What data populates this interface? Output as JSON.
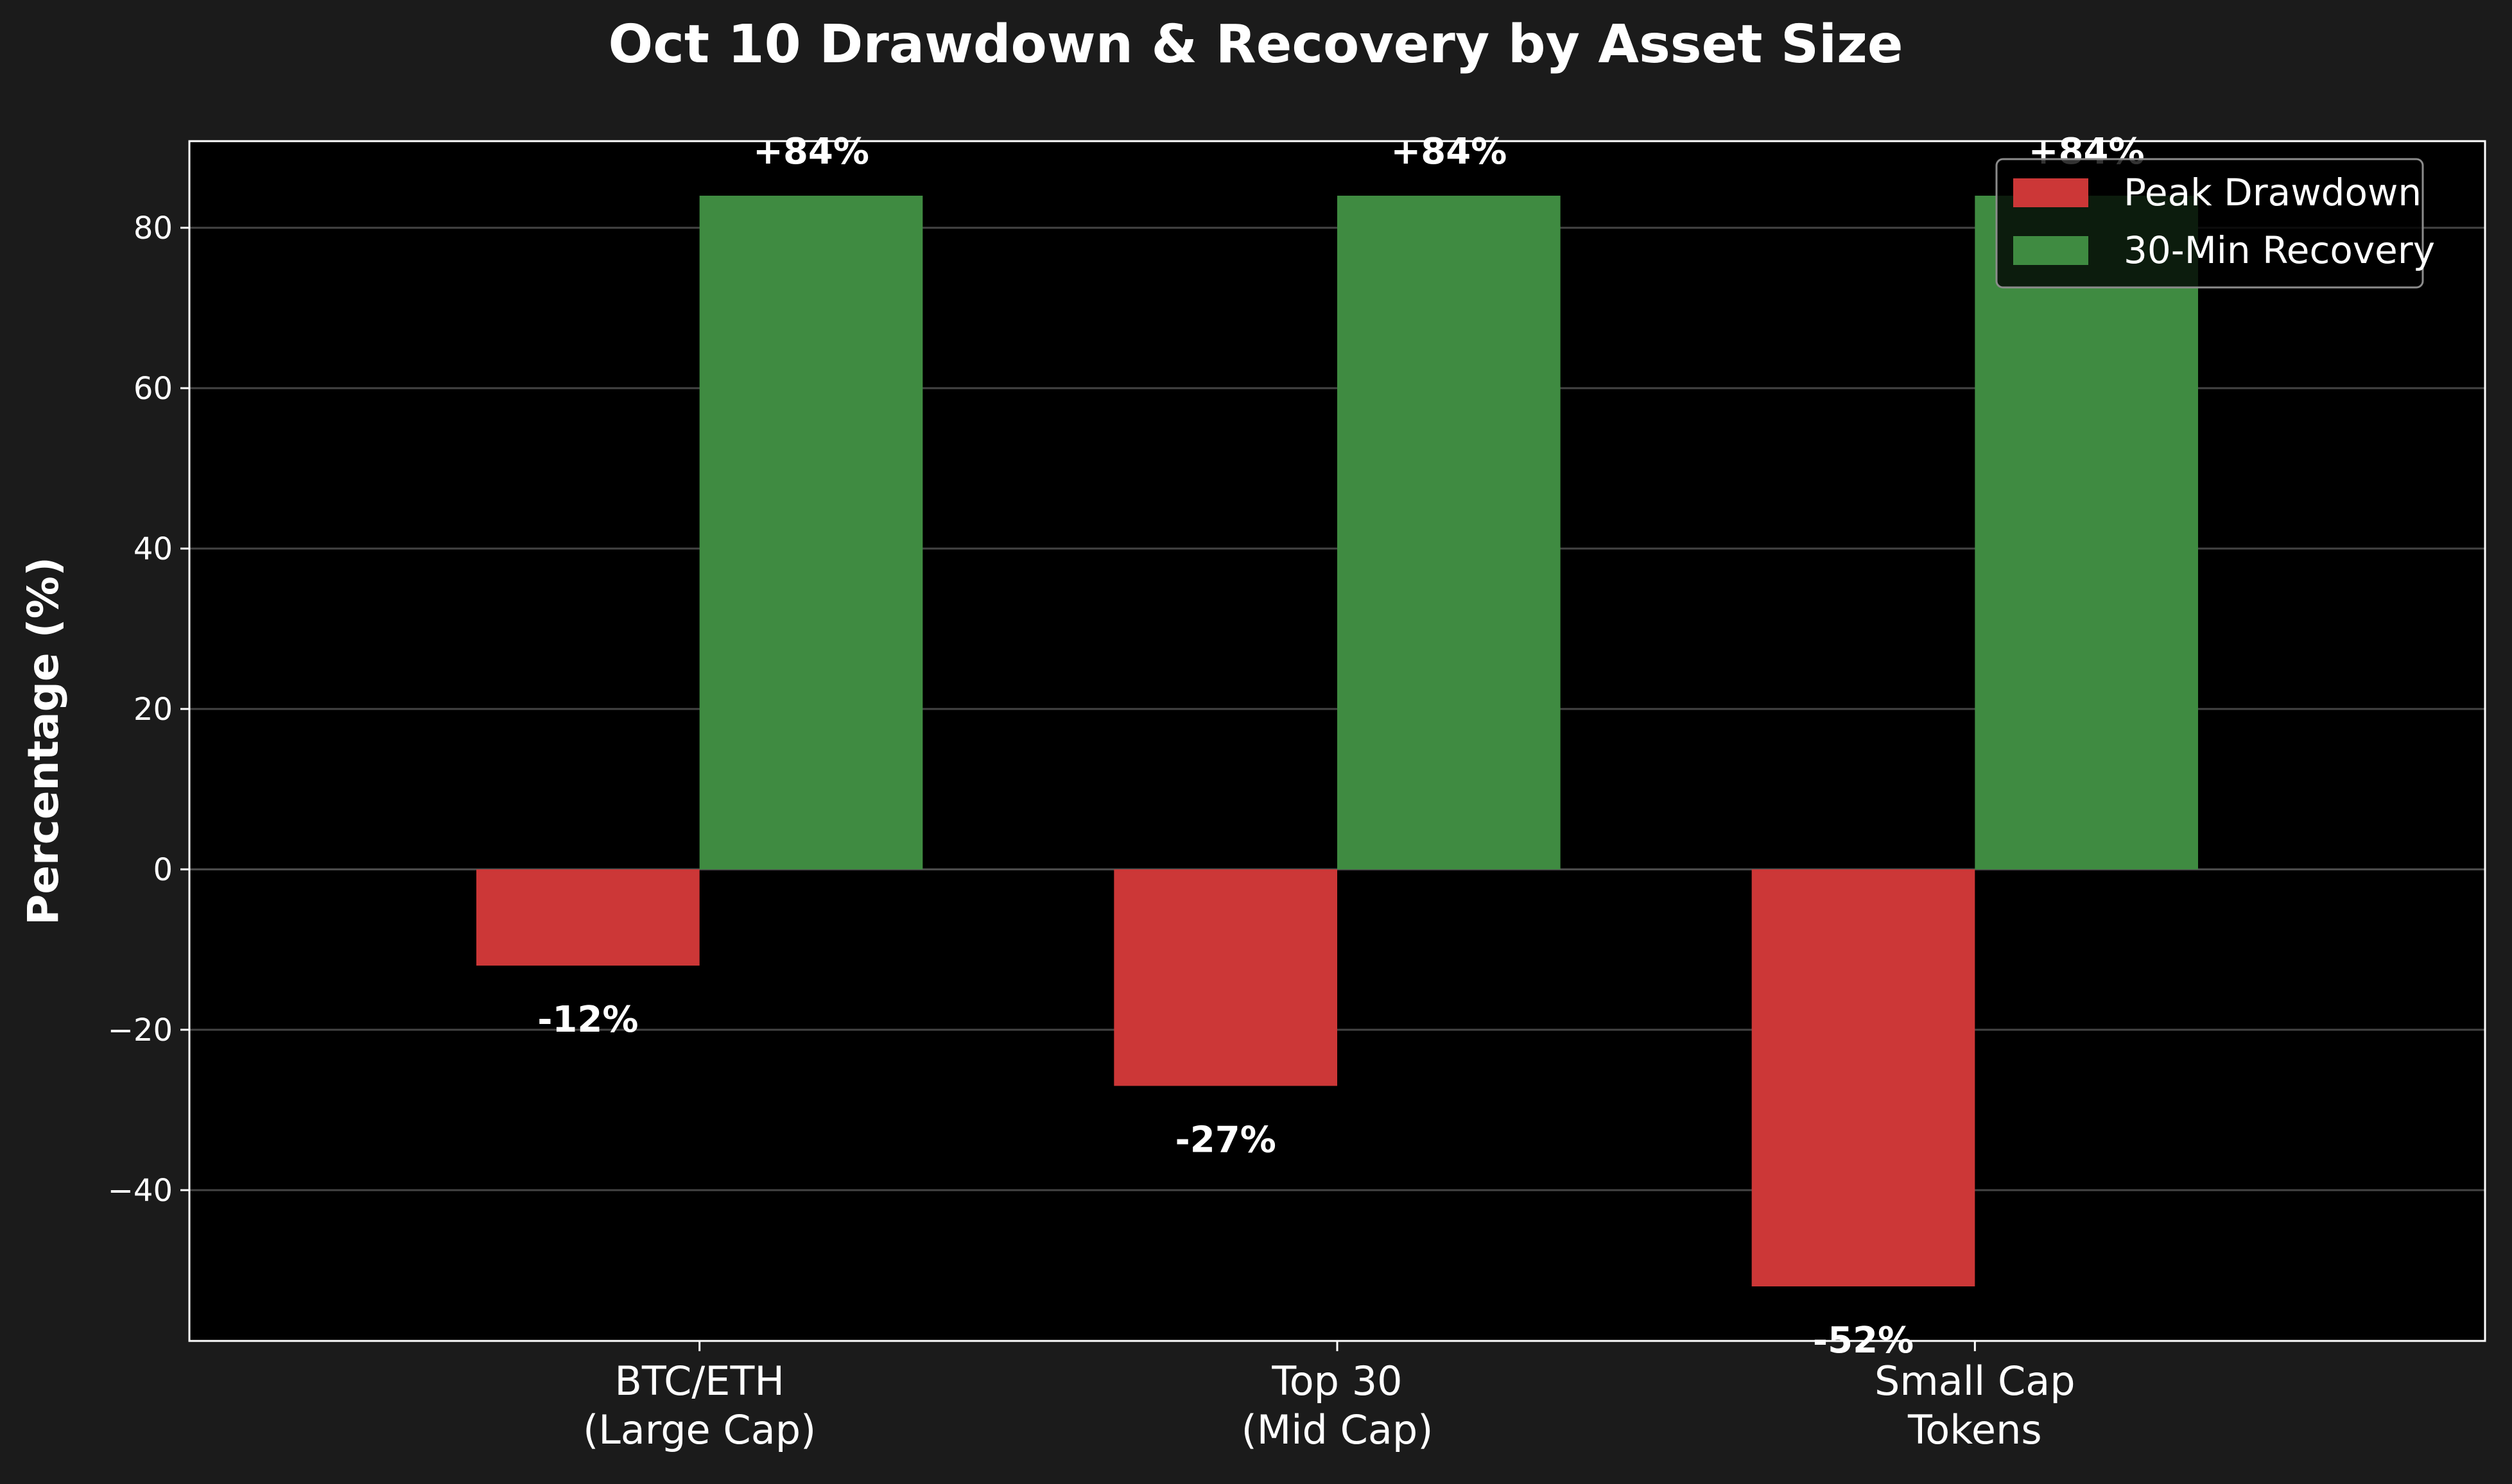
{
  "chart_data": {
    "type": "bar",
    "title": "Oct 10 Drawdown & Recovery by Asset Size",
    "xlabel": "",
    "ylabel": "Percentage (%)",
    "categories": [
      "BTC/ETH\n(Large Cap)",
      "Top 30\n(Mid Cap)",
      "Small Cap\nTokens"
    ],
    "series": [
      {
        "name": "Peak Drawdown",
        "values": [
          -12,
          -27,
          -52
        ],
        "labels": [
          "-12%",
          "-27%",
          "-52%"
        ],
        "color": "#cc3737"
      },
      {
        "name": "30-Min Recovery",
        "values": [
          84,
          84,
          84
        ],
        "labels": [
          "+84%",
          "+84%",
          "+84%"
        ],
        "color": "#3f8b41"
      }
    ],
    "ylim": [
      -58.8,
      90.8
    ],
    "yticks": [
      -40,
      -20,
      0,
      20,
      40,
      60,
      80
    ],
    "ytick_labels": [
      "−40",
      "−20",
      "0",
      "20",
      "40",
      "60",
      "80"
    ],
    "grid": true,
    "legend_position": "top-right",
    "colors": {
      "background": "#1b1b1b",
      "plot_background": "#000000",
      "text": "#ffffff",
      "grid": "#555555"
    }
  }
}
